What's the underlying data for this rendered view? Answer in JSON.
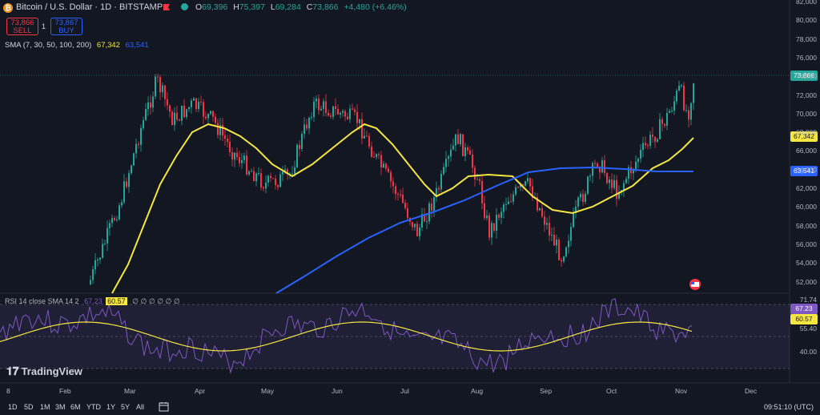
{
  "header": {
    "symbol_icon": "bitcoin-icon",
    "title": "Bitcoin / U.S. Dollar · 1D · BITSTAMP",
    "ohlc": [
      {
        "key": "O",
        "value": "69,396"
      },
      {
        "key": "H",
        "value": "75,397"
      },
      {
        "key": "L",
        "value": "69,284"
      },
      {
        "key": "C",
        "value": "73,866"
      }
    ],
    "change": "+4,480 (+6.46%)"
  },
  "trade": {
    "sell_price": "73,866",
    "sell_label": "SELL",
    "spread": "1",
    "buy_price": "73,867",
    "buy_label": "BUY"
  },
  "indicators": {
    "sma_name": "SMA (7, 30, 50, 100, 200)",
    "sma_value_1": "67,342",
    "sma_value_2": "63,541",
    "rsi_name": "RSI 14 close SMA 14 2",
    "rsi_value": "67.23",
    "rsi_sma_value": "60.57",
    "rsi_placeholders": "∅ ∅ ∅ ∅ ∅ ∅"
  },
  "colors": {
    "up": "#26a69a",
    "down": "#f23645",
    "sma_fast": "#f5e642",
    "sma_slow": "#2962ff",
    "rsi": "#7e57c2"
  },
  "price_axis": [
    "82,000",
    "80,000",
    "78,000",
    "76,000",
    "74,000",
    "72,000",
    "70,000",
    "68,000",
    "66,000",
    "64,000",
    "62,000",
    "60,000",
    "58,000",
    "56,000",
    "54,000",
    "52,000"
  ],
  "price_badges": {
    "last": "73,866",
    "sma_fast": "67,342",
    "sma_slow": "63,541"
  },
  "rsi_axis": {
    "upper": "71.74",
    "rsi_badge": "67.23",
    "sma_badge": "60.57",
    "lower": "55.40",
    "mid": "40.00"
  },
  "time_axis": [
    "8",
    "Feb",
    "Mar",
    "Apr",
    "May",
    "Jun",
    "Jul",
    "Aug",
    "Sep",
    "Oct",
    "Nov",
    "Dec"
  ],
  "ranges": [
    "1D",
    "5D",
    "1M",
    "3M",
    "6M",
    "YTD",
    "1Y",
    "5Y",
    "All"
  ],
  "clock": "09:51:10 (UTC)",
  "brand": "TradingView"
}
